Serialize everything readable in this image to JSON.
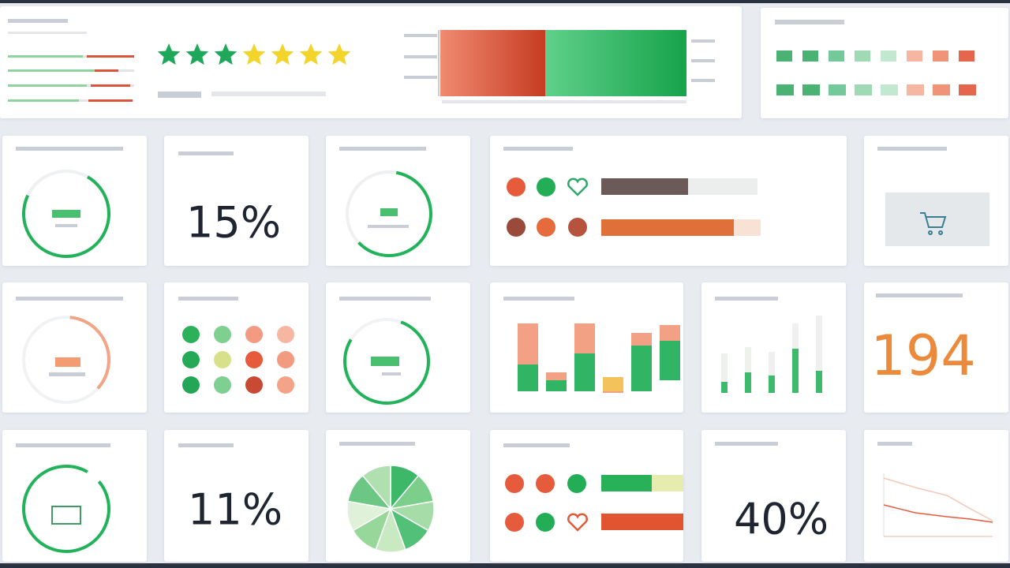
{
  "kpis": {
    "percent_a": "15%",
    "percent_b": "11%",
    "count": "194",
    "percent_c": "40%"
  }
}
